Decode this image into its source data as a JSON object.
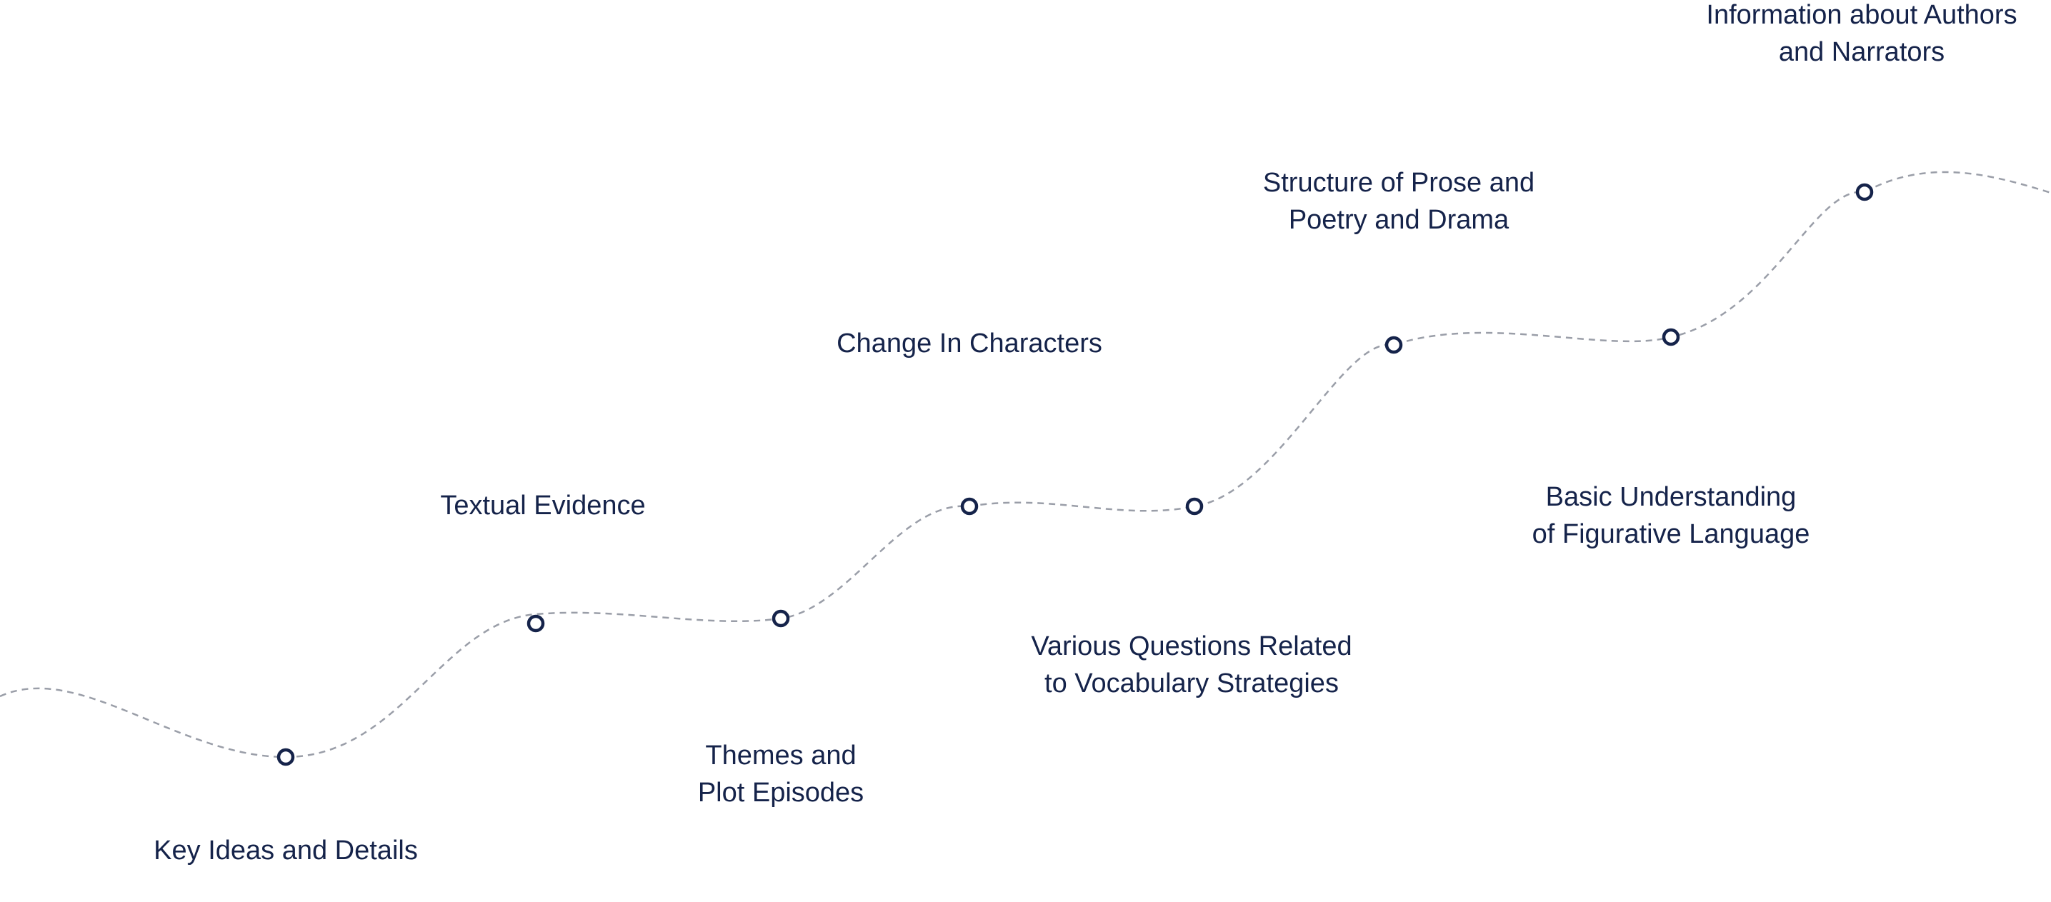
{
  "roadmap": {
    "colors": {
      "text": "#15234a",
      "node_stroke": "#15234a",
      "node_fill": "#ffffff",
      "path_stroke": "#9a9ea8"
    },
    "milestones": [
      {
        "id": "key-ideas",
        "lines": [
          "Key Ideas and Details"
        ]
      },
      {
        "id": "textual-evidence",
        "lines": [
          "Textual Evidence"
        ]
      },
      {
        "id": "themes",
        "lines": [
          "Themes and",
          "Plot Episodes"
        ]
      },
      {
        "id": "change-characters",
        "lines": [
          "Change In Characters"
        ]
      },
      {
        "id": "vocabulary",
        "lines": [
          "Various Questions Related",
          "to Vocabulary Strategies"
        ]
      },
      {
        "id": "structure",
        "lines": [
          "Structure of Prose and",
          "Poetry and Drama"
        ]
      },
      {
        "id": "figurative",
        "lines": [
          "Basic Understanding",
          "of Figurative Language"
        ]
      },
      {
        "id": "authors",
        "lines": [
          "Information about Authors",
          "and Narrators"
        ]
      }
    ]
  }
}
